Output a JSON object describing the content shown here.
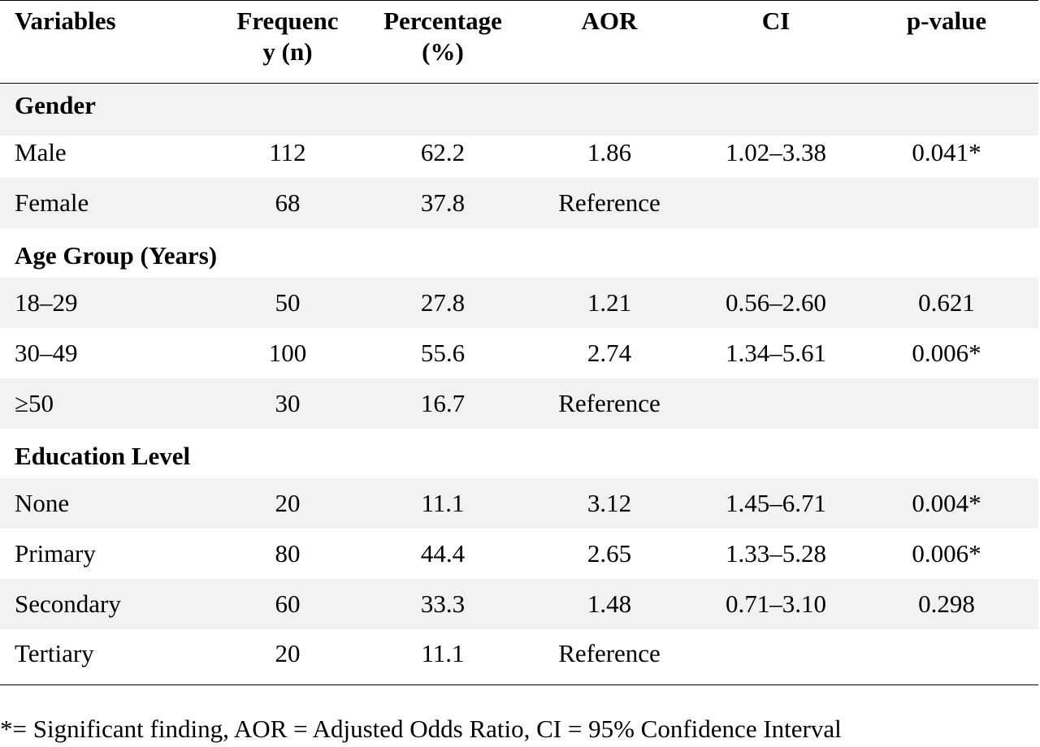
{
  "table": {
    "headers": {
      "variables": "Variables",
      "frequency_line1": "Frequenc",
      "frequency_line2": "y (n)",
      "percentage_line1": "Percentage",
      "percentage_line2": "(%)",
      "aor": "AOR",
      "ci": "CI",
      "pvalue": "p-value"
    },
    "groups": {
      "gender": {
        "label": "Gender",
        "rows": [
          {
            "variable": "Male",
            "n": "112",
            "pct": "62.2",
            "aor": "1.86",
            "ci": "1.02–3.38",
            "p": "0.041*"
          },
          {
            "variable": "Female",
            "n": "68",
            "pct": "37.8",
            "aor": "Reference",
            "ci": "",
            "p": ""
          }
        ]
      },
      "age": {
        "label": "Age Group (Years)",
        "rows": [
          {
            "variable": "18–29",
            "n": "50",
            "pct": "27.8",
            "aor": "1.21",
            "ci": "0.56–2.60",
            "p": "0.621"
          },
          {
            "variable": "30–49",
            "n": "100",
            "pct": "55.6",
            "aor": "2.74",
            "ci": "1.34–5.61",
            "p": "0.006*"
          },
          {
            "variable": "≥50",
            "n": "30",
            "pct": "16.7",
            "aor": "Reference",
            "ci": "",
            "p": ""
          }
        ]
      },
      "education": {
        "label": "Education Level",
        "rows": [
          {
            "variable": "None",
            "n": "20",
            "pct": "11.1",
            "aor": "3.12",
            "ci": "1.45–6.71",
            "p": "0.004*"
          },
          {
            "variable": "Primary",
            "n": "80",
            "pct": "44.4",
            "aor": "2.65",
            "ci": "1.33–5.28",
            "p": "0.006*"
          },
          {
            "variable": "Secondary",
            "n": "60",
            "pct": "33.3",
            "aor": "1.48",
            "ci": "0.71–3.10",
            "p": "0.298"
          },
          {
            "variable": "Tertiary",
            "n": "20",
            "pct": "11.1",
            "aor": "Reference",
            "ci": "",
            "p": ""
          }
        ]
      }
    }
  },
  "footnote": "*= Significant finding, AOR = Adjusted Odds Ratio, CI = 95% Confidence Interval",
  "colors": {
    "row_shade": "#f2f2f2",
    "rule": "#000000",
    "text": "#000000"
  }
}
